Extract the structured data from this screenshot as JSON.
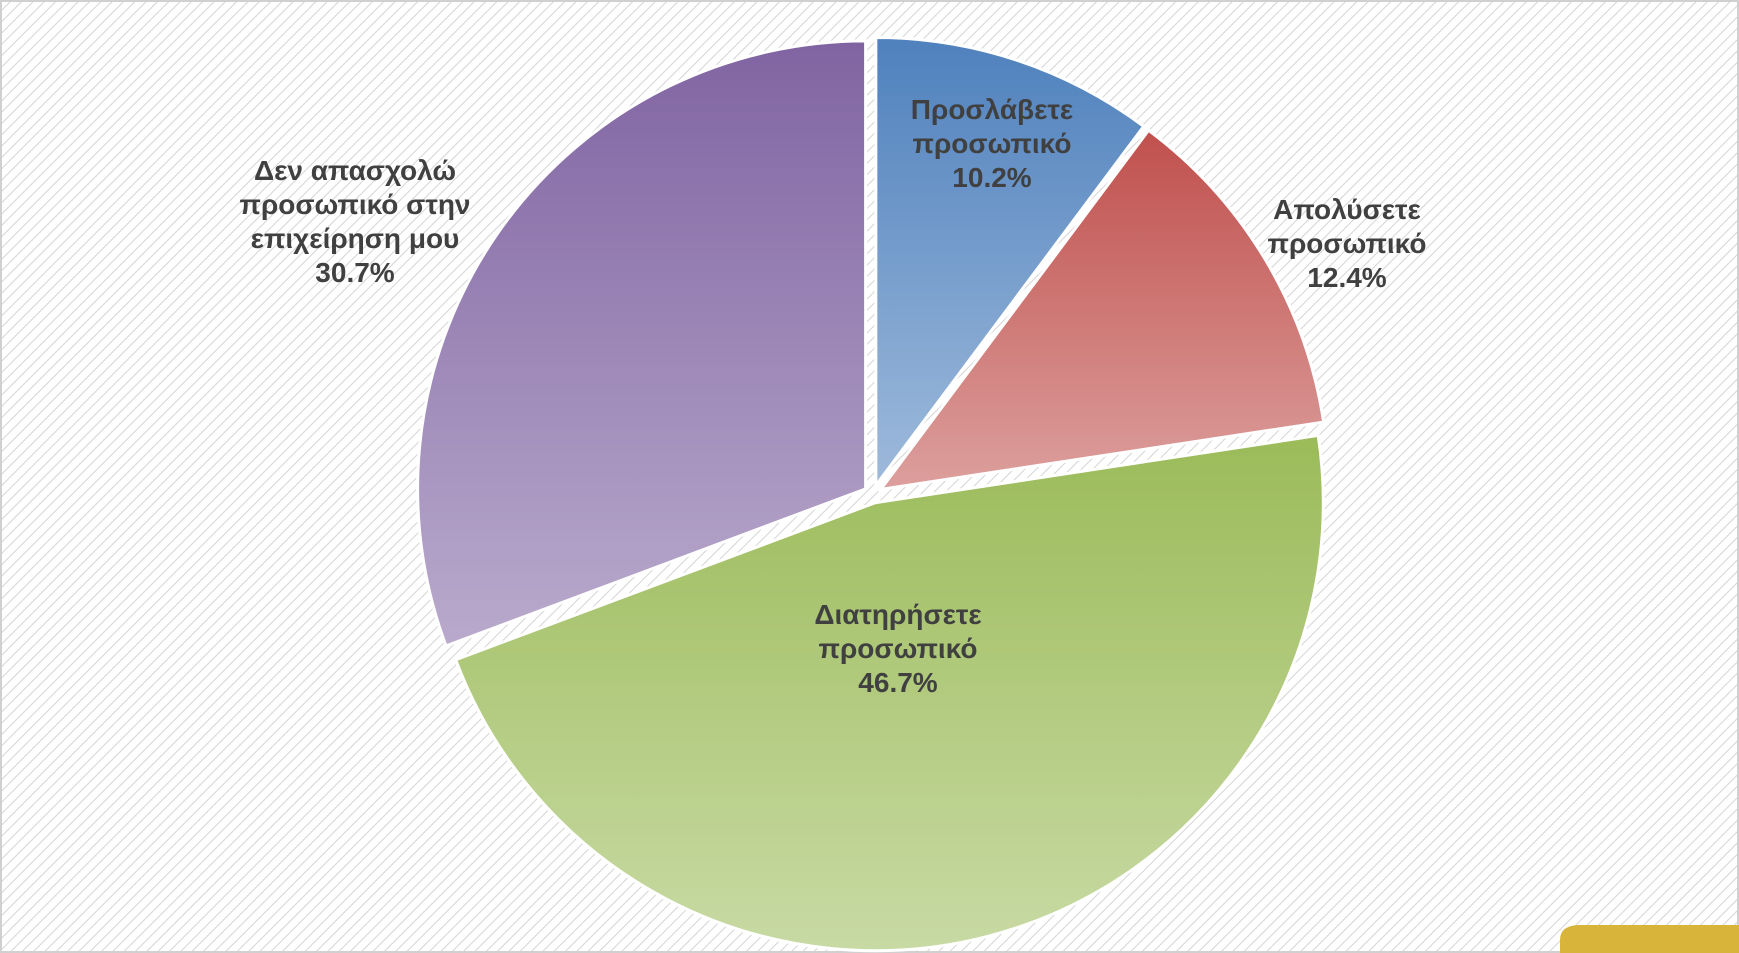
{
  "chart_data": {
    "type": "pie",
    "categories": [
      "Προσλάβετε προσωπικό",
      "Απολύσετε προσωπικό",
      "Διατηρήσετε προσωπικό",
      "Δεν απασχολώ προσωπικό στην επιχείρηση μου"
    ],
    "values": [
      10.2,
      12.4,
      46.7,
      30.7
    ],
    "value_labels": [
      "10.2%",
      "12.4%",
      "46.7%",
      "30.7%"
    ],
    "colors": [
      "#4f81bd",
      "#c0504d",
      "#9bbb59",
      "#8064a2"
    ]
  }
}
